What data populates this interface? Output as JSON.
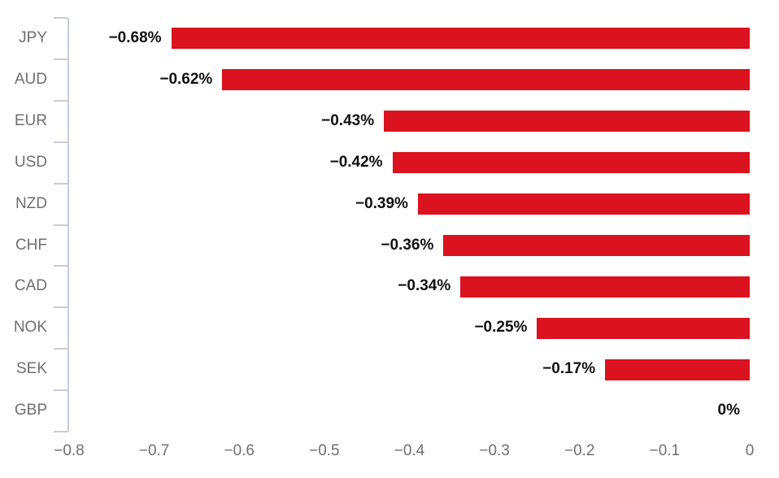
{
  "chart_data": {
    "type": "bar",
    "orientation": "horizontal",
    "title": "",
    "xlabel": "",
    "ylabel": "",
    "categories": [
      "JPY",
      "AUD",
      "EUR",
      "USD",
      "NZD",
      "CHF",
      "CAD",
      "NOK",
      "SEK",
      "GBP"
    ],
    "values": [
      -0.68,
      -0.62,
      -0.43,
      -0.42,
      -0.39,
      -0.36,
      -0.34,
      -0.25,
      -0.17,
      0
    ],
    "data_labels": [
      "−0.68%",
      "−0.62%",
      "−0.43%",
      "−0.42%",
      "−0.39%",
      "−0.36%",
      "−0.34%",
      "−0.25%",
      "−0.17%",
      "0%"
    ],
    "xlim": [
      -0.8,
      0
    ],
    "x_tick_labels": [
      "−0.8",
      "−0.7",
      "−0.6",
      "−0.5",
      "−0.4",
      "−0.3",
      "−0.2",
      "−0.1",
      "0"
    ],
    "grid": false,
    "legend": false,
    "colors": {
      "bar": "#db121f",
      "data_label": "#111111",
      "category_label": "#6f6f6f",
      "x_tick_label": "#6f6f6f",
      "axis_line": "#c7ccd6"
    }
  }
}
